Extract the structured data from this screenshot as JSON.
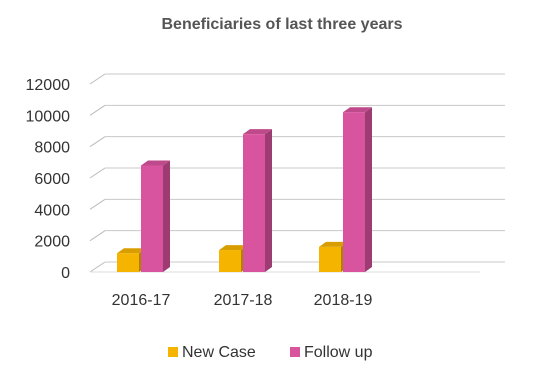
{
  "chart_data": {
    "type": "bar",
    "title": "Beneficiaries of last three years",
    "categories": [
      "2016-17",
      "2017-18",
      "2018-19"
    ],
    "series": [
      {
        "name": "New Case",
        "values": [
          1200,
          1400,
          1600
        ],
        "color": "#F5B400"
      },
      {
        "name": "Follow up",
        "values": [
          6800,
          8800,
          10200
        ],
        "color": "#D9549E"
      }
    ],
    "ylim": [
      0,
      12000
    ],
    "yticks": [
      "0",
      "2000",
      "4000",
      "6000",
      "8000",
      "10000",
      "12000"
    ],
    "grid": true,
    "legend": "bottom"
  }
}
